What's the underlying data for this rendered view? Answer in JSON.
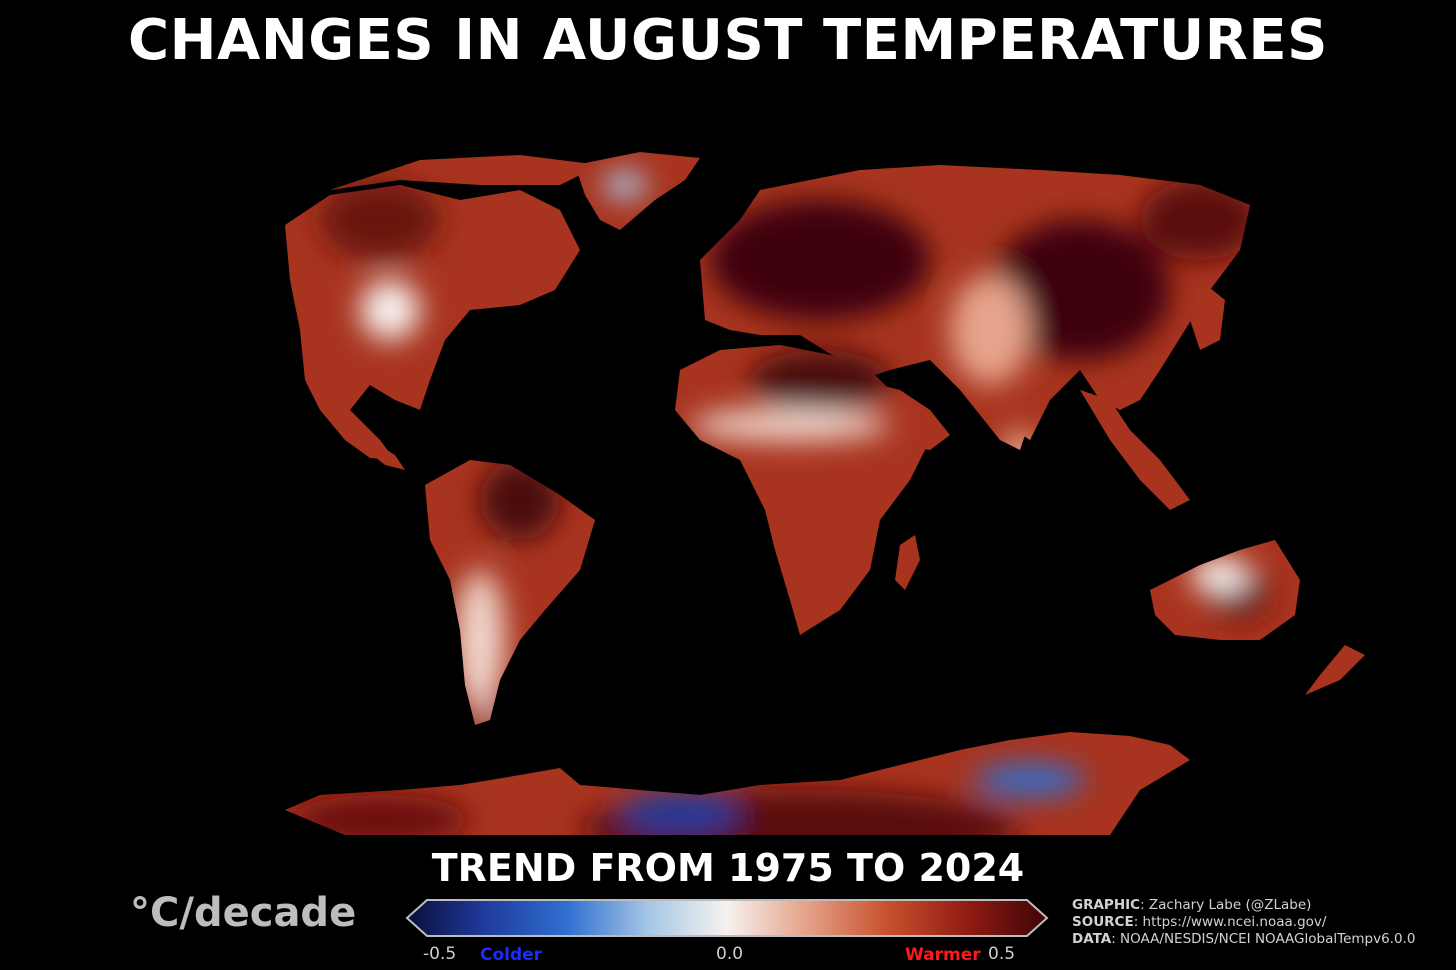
{
  "title": "CHANGES IN AUGUST TEMPERATURES",
  "subtitle": "TREND FROM 1975 TO 2024",
  "colorbar": {
    "unit": "°C/decade",
    "min_label": "-0.5",
    "mid_label": "0.0",
    "max_label": "0.5",
    "cold_label": "Colder",
    "warm_label": "Warmer",
    "cold_color": "#1a2cff",
    "warm_color": "#ff1a1a",
    "stops": [
      "#0a0f3a",
      "#1f3a9c",
      "#2f6fd0",
      "#a8c8e6",
      "#f6f2ef",
      "#e6a48c",
      "#c8512e",
      "#8e1a12",
      "#3d0508"
    ]
  },
  "credits": {
    "graphic_label": "GRAPHIC",
    "graphic_value": ": Zachary Labe (@ZLabe)",
    "source_label": "SOURCE",
    "source_value": ": https://www.ncei.noaa.gov/",
    "data_label": "DATA",
    "data_value": ": NOAA/NESDIS/NCEI NOAAGlobalTempv6.0.0"
  },
  "map": {
    "projection": "equirectangular world map",
    "background": "#000000",
    "land_base_color": "#a8341f",
    "cooling_regions": [
      "Greenland interior",
      "West Antarctica",
      "East Antarctica coast",
      "southern Patagonia"
    ],
    "strong_warming_regions": [
      "Northern Europe",
      "Siberia",
      "Mongolia/China",
      "Sahara/Middle East",
      "Amazon"
    ]
  }
}
